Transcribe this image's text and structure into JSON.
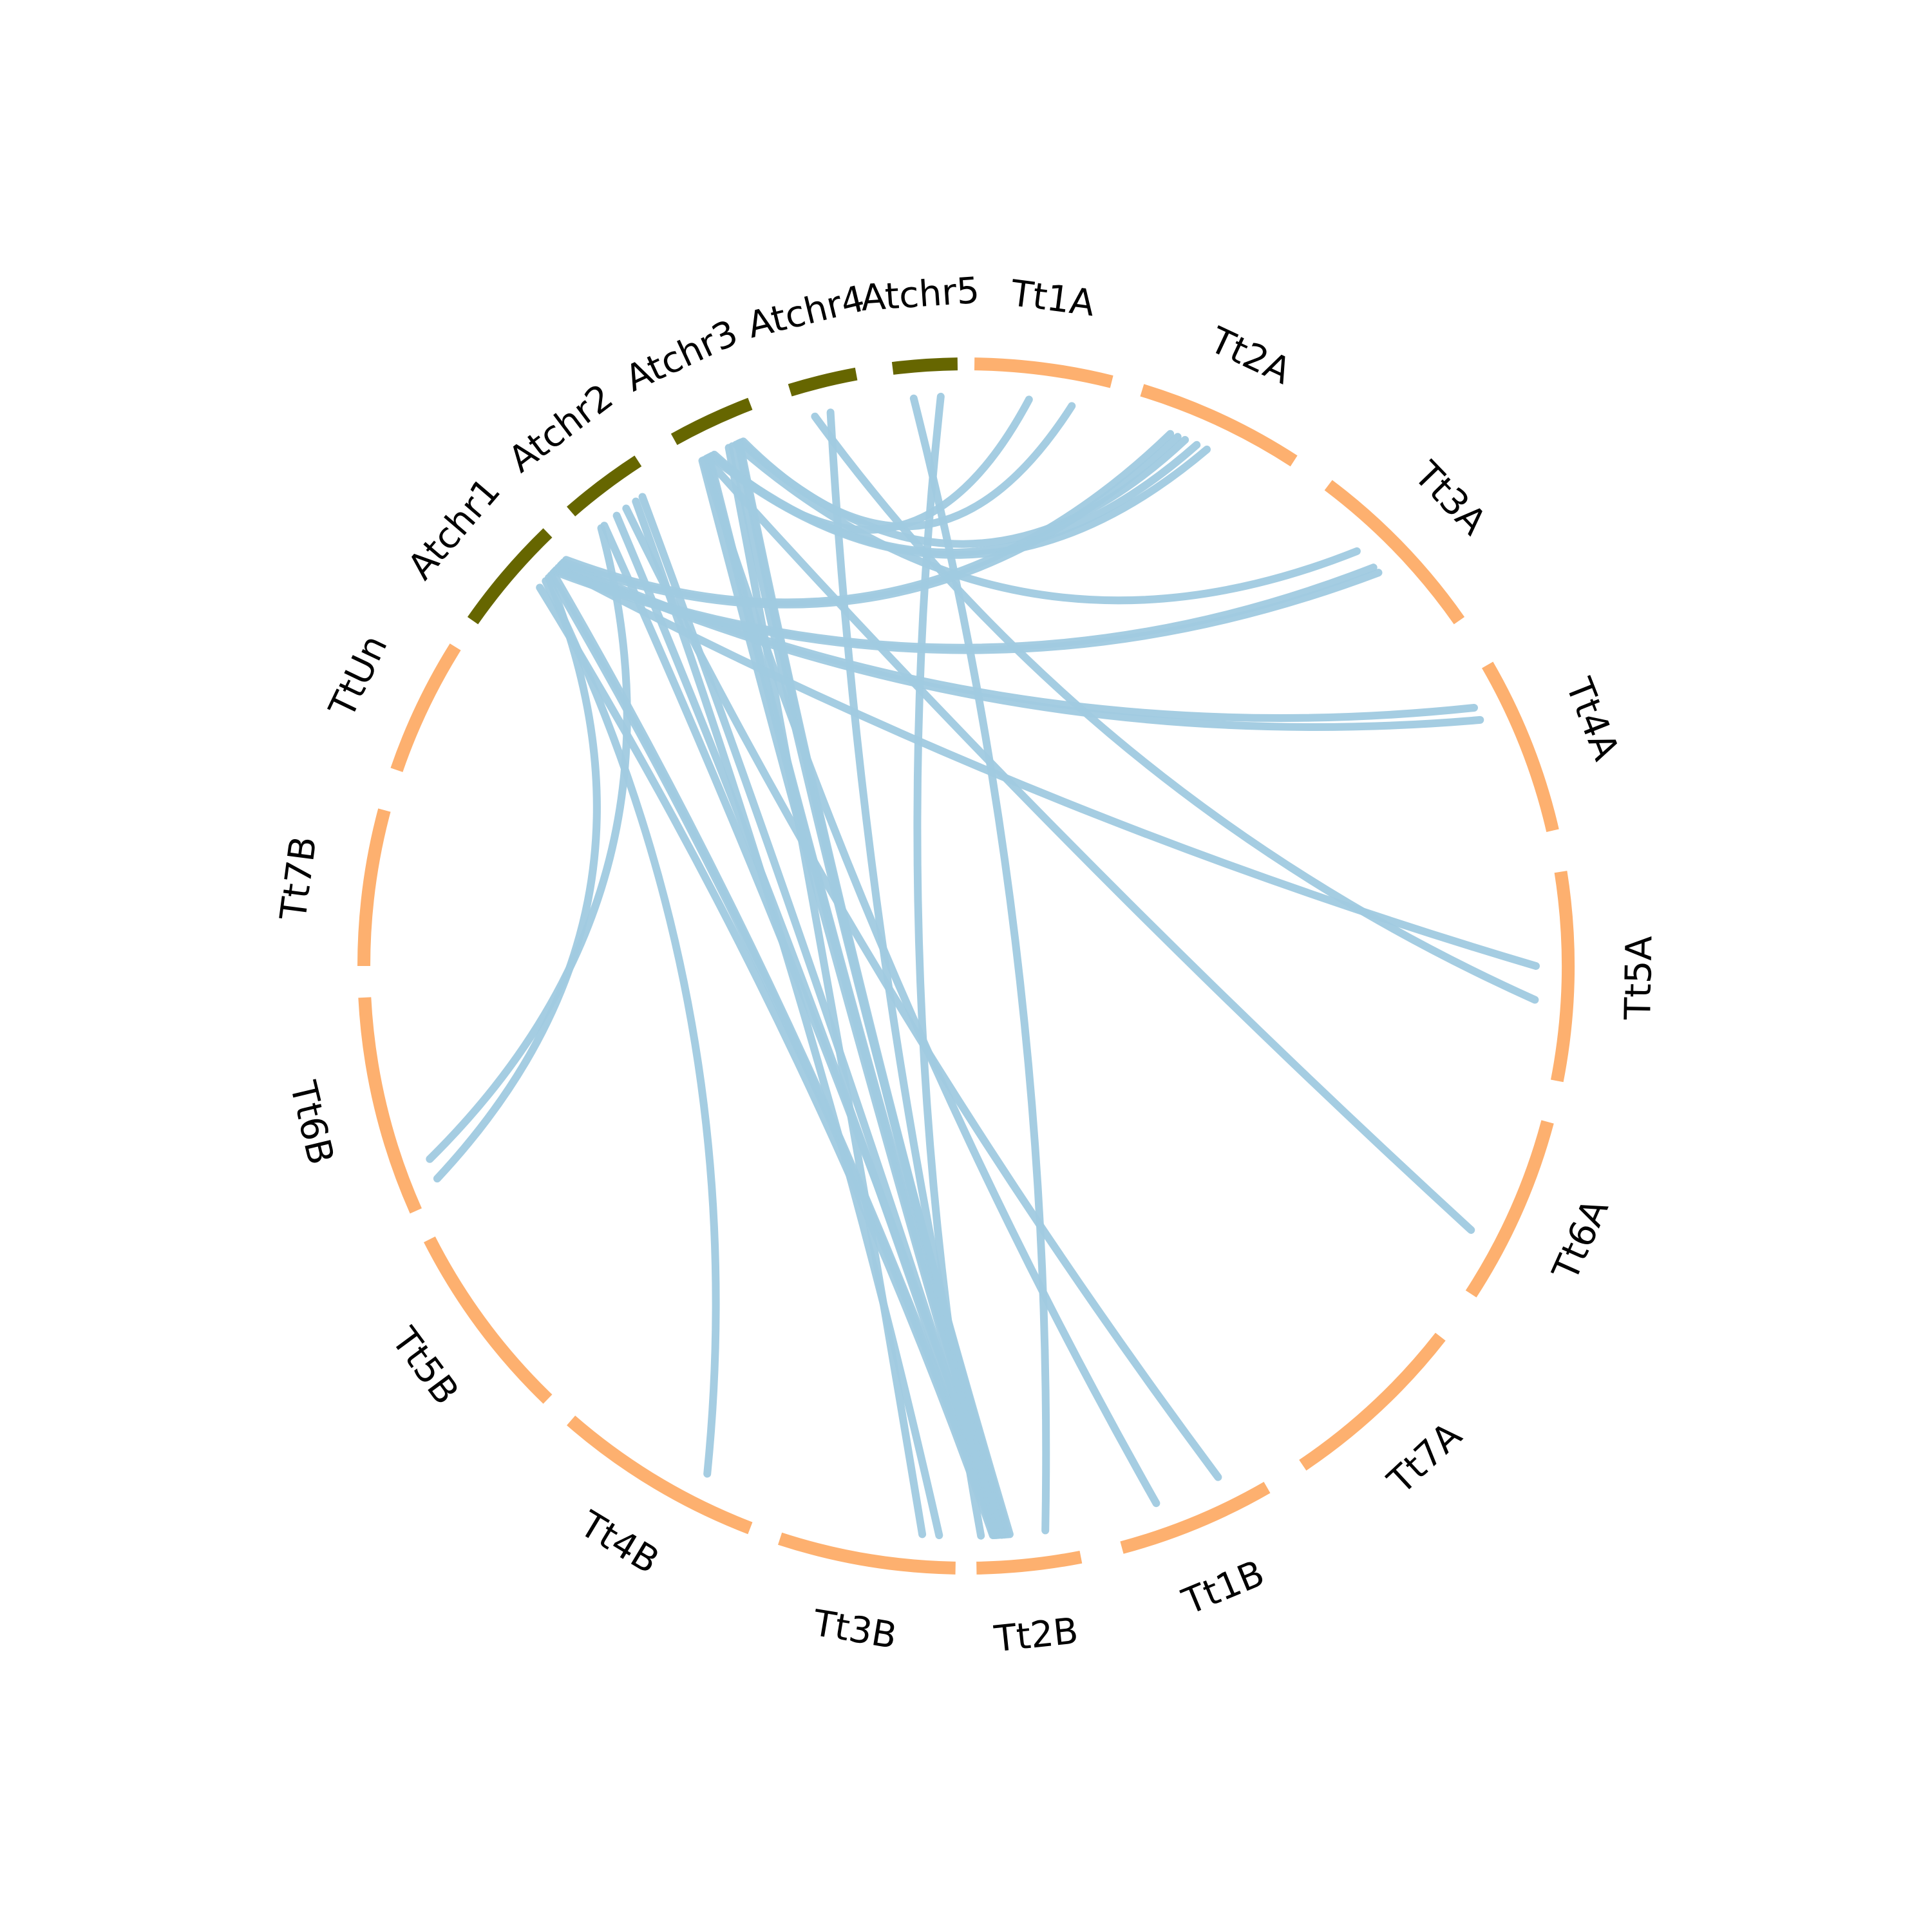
{
  "colors": {
    "background": "#ffffff",
    "arabidopsis": "#666600",
    "triticum": "#fdb06f",
    "link": "#a0cae0",
    "label": "#000000"
  },
  "segments": [
    {
      "id": "Atchr1",
      "label": "Atchr1",
      "group": "arabidopsis"
    },
    {
      "id": "Atchr2",
      "label": "Atchr2",
      "group": "arabidopsis"
    },
    {
      "id": "Atchr3",
      "label": "Atchr3",
      "group": "arabidopsis"
    },
    {
      "id": "Atchr4",
      "label": "Atchr4",
      "group": "arabidopsis"
    },
    {
      "id": "Atchr5",
      "label": "Atchr5",
      "group": "arabidopsis"
    },
    {
      "id": "Tt1A",
      "label": "Tt1A",
      "group": "triticum"
    },
    {
      "id": "Tt2A",
      "label": "Tt2A",
      "group": "triticum"
    },
    {
      "id": "Tt3A",
      "label": "Tt3A",
      "group": "triticum"
    },
    {
      "id": "Tt4A",
      "label": "Tt4A",
      "group": "triticum"
    },
    {
      "id": "Tt5A",
      "label": "Tt5A",
      "group": "triticum"
    },
    {
      "id": "Tt6A",
      "label": "Tt6A",
      "group": "triticum"
    },
    {
      "id": "Tt7A",
      "label": "Tt7A",
      "group": "triticum"
    },
    {
      "id": "Tt1B",
      "label": "Tt1B",
      "group": "triticum"
    },
    {
      "id": "Tt2B",
      "label": "Tt2B",
      "group": "triticum"
    },
    {
      "id": "Tt3B",
      "label": "Tt3B",
      "group": "triticum"
    },
    {
      "id": "Tt4B",
      "label": "Tt4B",
      "group": "triticum"
    },
    {
      "id": "Tt5B",
      "label": "Tt5B",
      "group": "triticum"
    },
    {
      "id": "Tt6B",
      "label": "Tt6B",
      "group": "triticum"
    },
    {
      "id": "Tt7B",
      "label": "Tt7B",
      "group": "triticum"
    },
    {
      "id": "TtUn",
      "label": "TtUn",
      "group": "triticum"
    }
  ],
  "links": [
    [
      "Atchr5",
      0.72,
      "Tt2B",
      0.95
    ],
    [
      "Atchr5",
      0.28,
      "Tt2B",
      0.3
    ],
    [
      "Atchr4",
      0.5,
      "Tt2B",
      0.82
    ],
    [
      "Atchr4",
      0.25,
      "Tt5A",
      0.62
    ],
    [
      "Atchr3",
      0.75,
      "Tt1A",
      0.75
    ],
    [
      "Atchr3",
      0.72,
      "Tt2A",
      0.35
    ],
    [
      "Atchr3",
      0.7,
      "Tt2B",
      0.68
    ],
    [
      "Atchr3",
      0.68,
      "Tt2B",
      0.7
    ],
    [
      "Atchr3",
      0.65,
      "Tt3A",
      0.35
    ],
    [
      "Atchr3",
      0.6,
      "Tt2B",
      0.66
    ],
    [
      "Atchr3",
      0.55,
      "Tt3B",
      0.2
    ],
    [
      "Atchr3",
      0.35,
      "Tt1A",
      0.42
    ],
    [
      "Atchr3",
      0.32,
      "Tt2A",
      0.43
    ],
    [
      "Atchr3",
      0.3,
      "Tt2A",
      0.5
    ],
    [
      "Atchr3",
      0.28,
      "Tt2B",
      0.72
    ],
    [
      "Atchr3",
      0.26,
      "Tt2B",
      0.74
    ],
    [
      "Atchr3",
      0.24,
      "Tt6A",
      0.7
    ],
    [
      "Atchr3",
      0.2,
      "Tt1B",
      0.7
    ],
    [
      "Atchr3",
      0.18,
      "Tt2B",
      0.76
    ],
    [
      "Atchr2",
      0.8,
      "Tt2B",
      0.78
    ],
    [
      "Atchr2",
      0.7,
      "Tt3B",
      0.1
    ],
    [
      "Atchr2",
      0.55,
      "Tt1B",
      0.25
    ],
    [
      "Atchr2",
      0.4,
      "Tt2B",
      0.8
    ],
    [
      "Atchr2",
      0.2,
      "Tt2B",
      0.74
    ],
    [
      "Atchr2",
      0.15,
      "Tt6B",
      0.2
    ],
    [
      "Atchr1",
      0.95,
      "Tt2A",
      0.25
    ],
    [
      "Atchr1",
      0.92,
      "Tt2A",
      0.3
    ],
    [
      "Atchr1",
      0.9,
      "Tt4A",
      0.18
    ],
    [
      "Atchr1",
      0.88,
      "Tt4A",
      0.26
    ],
    [
      "Atchr1",
      0.85,
      "Tt5A",
      0.45
    ],
    [
      "Atchr1",
      0.82,
      "Tt3A",
      0.48
    ],
    [
      "Atchr1",
      0.8,
      "Tt3A",
      0.52
    ],
    [
      "Atchr1",
      0.78,
      "Tt2B",
      0.79
    ],
    [
      "Atchr1",
      0.75,
      "Tt2B",
      0.81
    ],
    [
      "Atchr1",
      0.72,
      "Tt6B",
      0.1
    ],
    [
      "Atchr1",
      0.68,
      "Tt4B",
      0.3
    ],
    [
      "Atchr1",
      0.6,
      "Tt2B",
      0.83
    ]
  ]
}
